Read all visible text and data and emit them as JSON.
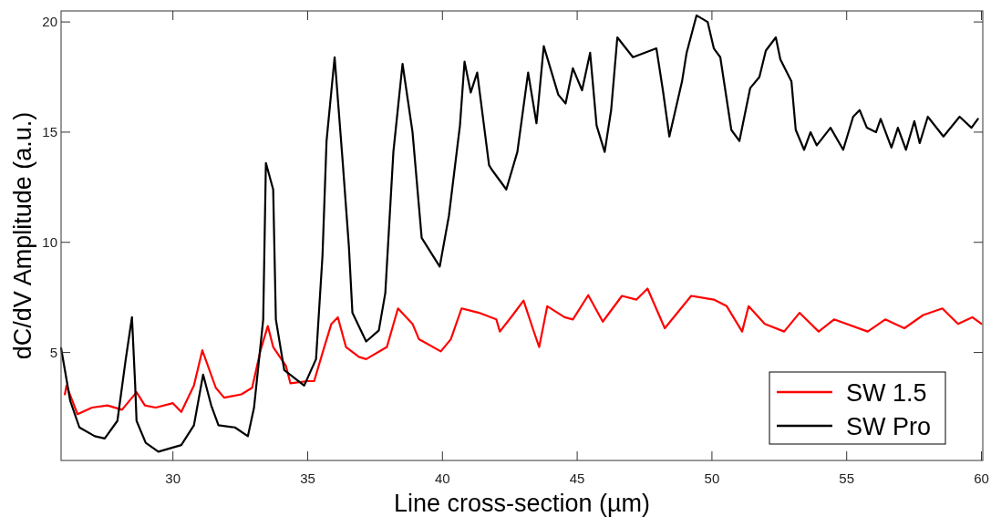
{
  "chart_data": {
    "type": "line",
    "xlabel": "Line cross-section (µm)",
    "ylabel": "dC/dV Amplitude (a.u.)",
    "xlim": [
      25.85,
      60.05
    ],
    "ylim": [
      0.1,
      20.5
    ],
    "xticks": [
      30,
      35,
      40,
      45,
      50,
      55,
      60
    ],
    "yticks": [
      5,
      10,
      15,
      20
    ],
    "grid": false,
    "legend": "bottom right",
    "line_style": "solid",
    "marker": "none",
    "series": [
      {
        "name": "SW 1.5",
        "color": "#ff0000",
        "x": [
          25.99,
          26.05,
          26.46,
          27.0,
          27.57,
          28.11,
          28.65,
          28.96,
          29.36,
          30.0,
          30.31,
          30.78,
          31.09,
          31.59,
          31.9,
          32.54,
          32.94,
          33.25,
          33.52,
          33.72,
          34.19,
          34.36,
          35.0,
          35.24,
          35.58,
          35.88,
          36.12,
          36.42,
          36.9,
          37.17,
          37.94,
          38.35,
          38.89,
          39.13,
          39.94,
          40.31,
          40.71,
          41.36,
          42.0,
          42.13,
          42.61,
          43.01,
          43.35,
          43.59,
          43.89,
          44.53,
          44.84,
          45.41,
          45.95,
          46.66,
          47.2,
          47.61,
          48.25,
          48.65,
          49.23,
          50.07,
          50.55,
          51.12,
          51.36,
          51.96,
          52.68,
          53.25,
          53.96,
          54.53,
          55.78,
          56.43,
          57.14,
          57.84,
          58.55,
          59.13,
          59.66,
          60.0
        ],
        "values": [
          3.1,
          3.5,
          2.2,
          2.5,
          2.6,
          2.4,
          3.2,
          2.6,
          2.5,
          2.7,
          2.3,
          3.5,
          5.1,
          3.4,
          2.95,
          3.1,
          3.4,
          5.1,
          6.2,
          5.25,
          4.4,
          3.6,
          3.7,
          3.7,
          5.1,
          6.3,
          6.6,
          5.25,
          4.8,
          4.7,
          5.25,
          7.0,
          6.3,
          5.6,
          5.05,
          5.6,
          7.0,
          6.8,
          6.5,
          5.95,
          6.7,
          7.36,
          6.1,
          5.25,
          7.1,
          6.6,
          6.5,
          7.6,
          6.4,
          7.57,
          7.4,
          7.9,
          6.1,
          6.7,
          7.57,
          7.4,
          7.1,
          5.95,
          7.1,
          6.3,
          5.95,
          6.8,
          5.95,
          6.5,
          5.95,
          6.5,
          6.1,
          6.7,
          7.0,
          6.3,
          6.6,
          6.3
        ]
      },
      {
        "name": "SW Pro",
        "color": "#000000",
        "x": [
          25.85,
          26.19,
          26.53,
          27.1,
          27.47,
          27.94,
          28.25,
          28.48,
          28.6,
          28.65,
          28.99,
          29.46,
          30.31,
          30.78,
          31.12,
          31.42,
          31.69,
          32.3,
          32.78,
          33.01,
          33.35,
          33.45,
          33.72,
          33.82,
          34.13,
          34.87,
          35.31,
          35.55,
          35.7,
          36.0,
          36.29,
          36.53,
          36.66,
          37.17,
          37.64,
          37.88,
          38.18,
          38.52,
          38.89,
          39.23,
          39.9,
          40.24,
          40.65,
          40.82,
          41.05,
          41.29,
          41.73,
          41.83,
          42.37,
          42.78,
          43.18,
          43.49,
          43.76,
          44.3,
          44.57,
          44.84,
          45.18,
          45.48,
          45.72,
          46.02,
          46.26,
          46.49,
          47.07,
          47.94,
          48.18,
          48.42,
          48.89,
          49.06,
          49.43,
          49.84,
          50.07,
          50.31,
          50.72,
          51.02,
          51.42,
          51.76,
          52.0,
          52.37,
          52.54,
          52.95,
          53.11,
          53.42,
          53.66,
          53.89,
          54.4,
          54.87,
          55.24,
          55.48,
          55.75,
          56.09,
          56.26,
          56.66,
          56.9,
          57.2,
          57.51,
          57.71,
          58.01,
          58.59,
          59.19,
          59.63,
          59.87
        ],
        "values": [
          5.2,
          2.8,
          1.6,
          1.2,
          1.1,
          1.9,
          4.7,
          6.6,
          3.5,
          1.9,
          0.9,
          0.5,
          0.8,
          1.7,
          4.0,
          2.6,
          1.7,
          1.6,
          1.2,
          2.5,
          6.5,
          13.6,
          12.4,
          6.5,
          4.2,
          3.5,
          4.7,
          9.4,
          14.6,
          18.4,
          13.8,
          9.8,
          6.8,
          5.5,
          6.0,
          7.7,
          14.1,
          18.1,
          15.0,
          10.2,
          8.9,
          11.2,
          15.3,
          18.2,
          16.8,
          17.7,
          13.5,
          13.3,
          12.4,
          14.1,
          17.7,
          15.4,
          18.9,
          16.7,
          16.3,
          17.9,
          16.9,
          18.6,
          15.3,
          14.1,
          16.0,
          19.3,
          18.4,
          18.8,
          16.9,
          14.8,
          17.3,
          18.6,
          20.3,
          20.0,
          18.8,
          18.4,
          15.1,
          14.6,
          17.0,
          17.5,
          18.7,
          19.3,
          18.3,
          17.3,
          15.1,
          14.2,
          15.0,
          14.4,
          15.2,
          14.2,
          15.7,
          16.0,
          15.2,
          15.0,
          15.6,
          14.3,
          15.2,
          14.2,
          15.5,
          14.5,
          15.7,
          14.8,
          15.7,
          15.2,
          15.6
        ]
      }
    ]
  }
}
